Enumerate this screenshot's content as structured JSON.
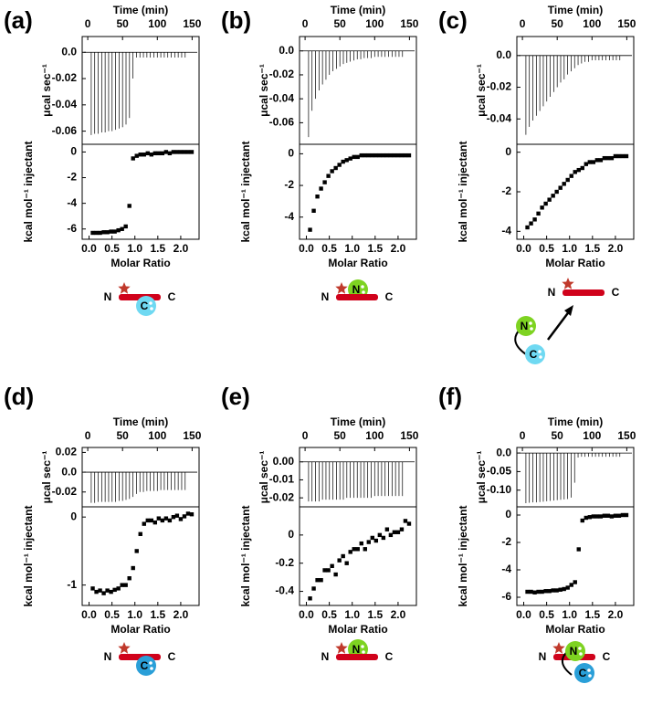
{
  "panels": [
    {
      "label": "(a)",
      "diagram_labels": [
        "N",
        "C",
        "C"
      ]
    },
    {
      "label": "(b)",
      "diagram_labels": [
        "N",
        "C",
        "N"
      ]
    },
    {
      "label": "(c)",
      "diagram_labels": [
        "N",
        "C",
        "N",
        "C"
      ]
    },
    {
      "label": "(d)",
      "diagram_labels": [
        "N",
        "C",
        "C"
      ]
    },
    {
      "label": "(e)",
      "diagram_labels": [
        "N",
        "C",
        "N"
      ]
    },
    {
      "label": "(f)",
      "diagram_labels": [
        "N",
        "C",
        "N",
        "C"
      ]
    }
  ],
  "chart_data": [
    {
      "type": "spike",
      "xlabel": "Time (min)",
      "ylabel": "μcal sec⁻¹",
      "color": "#000000",
      "xlim": [
        -8,
        160
      ],
      "xticks": [
        0,
        50,
        100,
        150
      ],
      "ylim": [
        -0.07,
        0.012
      ],
      "yticks": [
        {
          "value": 0,
          "label": "0.0"
        },
        -0.02,
        -0.04,
        -0.06
      ],
      "x": [
        5,
        10,
        15,
        20,
        25,
        30,
        35,
        40,
        45,
        50,
        55,
        60,
        65,
        70,
        75,
        80,
        85,
        90,
        95,
        100,
        105,
        110,
        115,
        120,
        125,
        130,
        135,
        140
      ],
      "values": [
        -0.063,
        -0.062,
        -0.062,
        -0.061,
        -0.061,
        -0.06,
        -0.06,
        -0.059,
        -0.058,
        -0.057,
        -0.055,
        -0.05,
        -0.02,
        -0.004,
        -0.004,
        -0.004,
        -0.004,
        -0.004,
        -0.004,
        -0.004,
        -0.004,
        -0.004,
        -0.004,
        -0.004,
        -0.004,
        -0.004,
        -0.004,
        -0.004
      ]
    },
    {
      "type": "scatter",
      "xlabel": "Molar Ratio",
      "ylabel": "kcal mol⁻¹ injectant",
      "color": "#000000",
      "xlim": [
        -0.15,
        2.4
      ],
      "xticks": [
        {
          "value": 0,
          "label": "0.0"
        },
        {
          "value": 0.5,
          "label": "0.5"
        },
        {
          "value": 1,
          "label": "1.0"
        },
        {
          "value": 1.5,
          "label": "1.5"
        },
        {
          "value": 2,
          "label": "2.0"
        }
      ],
      "ylim": [
        -6.8,
        0.6
      ],
      "yticks": [
        0,
        -2,
        -4,
        -6
      ],
      "x": [
        0.08,
        0.16,
        0.24,
        0.32,
        0.4,
        0.48,
        0.56,
        0.64,
        0.72,
        0.8,
        0.88,
        0.96,
        1.04,
        1.12,
        1.2,
        1.28,
        1.36,
        1.44,
        1.52,
        1.6,
        1.68,
        1.76,
        1.84,
        1.92,
        2,
        2.08,
        2.16,
        2.24
      ],
      "values": [
        -6.3,
        -6.3,
        -6.3,
        -6.25,
        -6.25,
        -6.2,
        -6.2,
        -6.1,
        -6,
        -5.8,
        -4.2,
        -0.5,
        -0.3,
        -0.2,
        -0.2,
        -0.1,
        -0.2,
        -0.1,
        -0.1,
        -0.1,
        0,
        -0.1,
        0,
        0,
        0,
        0,
        0,
        0
      ]
    },
    {
      "type": "spike",
      "xlabel": "Time (min)",
      "ylabel": "μcal sec⁻¹",
      "color": "#000000",
      "xlim": [
        -8,
        160
      ],
      "xticks": [
        0,
        50,
        100,
        150
      ],
      "ylim": [
        -0.078,
        0.012
      ],
      "yticks": [
        {
          "value": 0,
          "label": "0.0"
        },
        -0.02,
        -0.04,
        -0.06
      ],
      "x": [
        5,
        10,
        15,
        20,
        25,
        30,
        35,
        40,
        45,
        50,
        55,
        60,
        65,
        70,
        75,
        80,
        85,
        90,
        95,
        100,
        105,
        110,
        115,
        120,
        125,
        130,
        135,
        140
      ],
      "values": [
        -0.072,
        -0.05,
        -0.04,
        -0.033,
        -0.028,
        -0.024,
        -0.02,
        -0.017,
        -0.015,
        -0.013,
        -0.011,
        -0.01,
        -0.009,
        -0.008,
        -0.007,
        -0.007,
        -0.006,
        -0.006,
        -0.006,
        -0.005,
        -0.005,
        -0.005,
        -0.005,
        -0.005,
        -0.005,
        -0.005,
        -0.005,
        -0.005
      ]
    },
    {
      "type": "scatter",
      "xlabel": "Molar Ratio",
      "ylabel": "kcal mol⁻¹ injectant",
      "color": "#000000",
      "xlim": [
        -0.15,
        2.4
      ],
      "xticks": [
        {
          "value": 0,
          "label": "0.0"
        },
        {
          "value": 0.5,
          "label": "0.5"
        },
        {
          "value": 1,
          "label": "1.0"
        },
        {
          "value": 1.5,
          "label": "1.5"
        },
        {
          "value": 2,
          "label": "2.0"
        }
      ],
      "ylim": [
        -5.4,
        0.6
      ],
      "yticks": [
        0,
        -2,
        -4
      ],
      "x": [
        0.08,
        0.16,
        0.24,
        0.32,
        0.4,
        0.48,
        0.56,
        0.64,
        0.72,
        0.8,
        0.88,
        0.96,
        1.04,
        1.12,
        1.2,
        1.28,
        1.36,
        1.44,
        1.52,
        1.6,
        1.68,
        1.76,
        1.84,
        1.92,
        2,
        2.08,
        2.16,
        2.24
      ],
      "values": [
        -4.8,
        -3.6,
        -2.7,
        -2.2,
        -1.8,
        -1.4,
        -1.1,
        -0.9,
        -0.7,
        -0.5,
        -0.4,
        -0.3,
        -0.2,
        -0.2,
        -0.1,
        -0.1,
        -0.1,
        -0.1,
        -0.1,
        -0.1,
        -0.1,
        -0.1,
        -0.1,
        -0.1,
        -0.1,
        -0.1,
        -0.1,
        -0.1
      ]
    },
    {
      "type": "spike",
      "xlabel": "Time (min)",
      "ylabel": "μcal sec⁻¹",
      "color": "#000000",
      "xlim": [
        -8,
        160
      ],
      "xticks": [
        0,
        50,
        100,
        150
      ],
      "ylim": [
        -0.056,
        0.012
      ],
      "yticks": [
        {
          "value": 0,
          "label": "0.0"
        },
        -0.02,
        -0.04
      ],
      "x": [
        5,
        10,
        15,
        20,
        25,
        30,
        35,
        40,
        45,
        50,
        55,
        60,
        65,
        70,
        75,
        80,
        85,
        90,
        95,
        100,
        105,
        110,
        115,
        120,
        125,
        130,
        135,
        140
      ],
      "values": [
        -0.05,
        -0.045,
        -0.041,
        -0.038,
        -0.035,
        -0.032,
        -0.029,
        -0.026,
        -0.023,
        -0.02,
        -0.017,
        -0.015,
        -0.012,
        -0.01,
        -0.008,
        -0.006,
        -0.005,
        -0.004,
        -0.004,
        -0.003,
        -0.003,
        -0.003,
        -0.003,
        -0.003,
        -0.003,
        -0.003,
        -0.003,
        -0.003
      ]
    },
    {
      "type": "scatter",
      "xlabel": "Molar Ratio",
      "ylabel": "kcal mol⁻¹ injectant",
      "color": "#000000",
      "xlim": [
        -0.15,
        2.4
      ],
      "xticks": [
        {
          "value": 0,
          "label": "0.0"
        },
        {
          "value": 0.5,
          "label": "0.5"
        },
        {
          "value": 1,
          "label": "1.0"
        },
        {
          "value": 1.5,
          "label": "1.5"
        },
        {
          "value": 2,
          "label": "2.0"
        }
      ],
      "ylim": [
        -4.4,
        0.4
      ],
      "yticks": [
        0,
        -2,
        -4
      ],
      "x": [
        0.08,
        0.16,
        0.24,
        0.32,
        0.4,
        0.48,
        0.56,
        0.64,
        0.72,
        0.8,
        0.88,
        0.96,
        1.04,
        1.12,
        1.2,
        1.28,
        1.36,
        1.44,
        1.52,
        1.6,
        1.68,
        1.76,
        1.84,
        1.92,
        2,
        2.08,
        2.16,
        2.24
      ],
      "values": [
        -3.8,
        -3.6,
        -3.4,
        -3.1,
        -2.8,
        -2.6,
        -2.4,
        -2.2,
        -2,
        -1.8,
        -1.6,
        -1.4,
        -1.2,
        -1,
        -0.9,
        -0.8,
        -0.6,
        -0.5,
        -0.5,
        -0.4,
        -0.4,
        -0.3,
        -0.3,
        -0.3,
        -0.2,
        -0.2,
        -0.2,
        -0.2
      ]
    },
    {
      "type": "spike",
      "xlabel": "Time (min)",
      "ylabel": "μcal sec⁻¹",
      "color": "#000000",
      "xlim": [
        -8,
        160
      ],
      "xticks": [
        0,
        50,
        100,
        150
      ],
      "ylim": [
        -0.035,
        0.025
      ],
      "yticks": [
        0.02,
        {
          "value": 0,
          "label": "0.0"
        },
        -0.02
      ],
      "x": [
        5,
        10,
        15,
        20,
        25,
        30,
        35,
        40,
        45,
        50,
        55,
        60,
        65,
        70,
        75,
        80,
        85,
        90,
        95,
        100,
        105,
        110,
        115,
        120,
        125,
        130,
        135,
        140
      ],
      "values": [
        -0.031,
        -0.031,
        -0.03,
        -0.03,
        -0.03,
        -0.03,
        -0.03,
        -0.03,
        -0.029,
        -0.029,
        -0.028,
        -0.027,
        -0.025,
        -0.022,
        -0.02,
        -0.02,
        -0.019,
        -0.019,
        -0.019,
        -0.019,
        -0.018,
        -0.018,
        -0.018,
        -0.018,
        -0.018,
        -0.018,
        -0.018,
        -0.018
      ]
    },
    {
      "type": "scatter",
      "xlabel": "Molar Ratio",
      "ylabel": "kcal mol⁻¹ injectant",
      "color": "#000000",
      "xlim": [
        -0.15,
        2.4
      ],
      "xticks": [
        {
          "value": 0,
          "label": "0.0"
        },
        {
          "value": 0.5,
          "label": "0.5"
        },
        {
          "value": 1,
          "label": "1.0"
        },
        {
          "value": 1.5,
          "label": "1.5"
        },
        {
          "value": 2,
          "label": "2.0"
        }
      ],
      "ylim": [
        -1.3,
        0.15
      ],
      "yticks": [
        0,
        -1
      ],
      "x": [
        0.08,
        0.16,
        0.24,
        0.32,
        0.4,
        0.48,
        0.56,
        0.64,
        0.72,
        0.8,
        0.88,
        0.96,
        1.04,
        1.12,
        1.2,
        1.28,
        1.36,
        1.44,
        1.52,
        1.6,
        1.68,
        1.76,
        1.84,
        1.92,
        2,
        2.08,
        2.16,
        2.24
      ],
      "values": [
        -1.05,
        -1.1,
        -1.08,
        -1.12,
        -1.08,
        -1.1,
        -1.07,
        -1.05,
        -1,
        -1,
        -0.9,
        -0.75,
        -0.5,
        -0.25,
        -0.1,
        -0.05,
        -0.05,
        -0.08,
        -0.02,
        -0.05,
        -0.02,
        -0.05,
        0,
        0.02,
        -0.03,
        0.01,
        0.05,
        0.04
      ]
    },
    {
      "type": "spike",
      "xlabel": "Time (min)",
      "ylabel": "μcal sec⁻¹",
      "color": "#000000",
      "xlim": [
        -8,
        160
      ],
      "xticks": [
        0,
        50,
        100,
        150
      ],
      "ylim": [
        -0.025,
        0.008
      ],
      "yticks": [
        {
          "value": 0,
          "label": "0.00"
        },
        -0.01,
        -0.02
      ],
      "x": [
        5,
        10,
        15,
        20,
        25,
        30,
        35,
        40,
        45,
        50,
        55,
        60,
        65,
        70,
        75,
        80,
        85,
        90,
        95,
        100,
        105,
        110,
        115,
        120,
        125,
        130,
        135,
        140
      ],
      "values": [
        -0.022,
        -0.022,
        -0.022,
        -0.022,
        -0.021,
        -0.021,
        -0.021,
        -0.021,
        -0.021,
        -0.021,
        -0.021,
        -0.02,
        -0.02,
        -0.02,
        -0.02,
        -0.02,
        -0.02,
        -0.02,
        -0.02,
        -0.019,
        -0.019,
        -0.019,
        -0.019,
        -0.019,
        -0.019,
        -0.019,
        -0.019,
        -0.019
      ]
    },
    {
      "type": "scatter",
      "xlabel": "Molar Ratio",
      "ylabel": "kcal mol⁻¹ injectant",
      "color": "#000000",
      "xlim": [
        -0.15,
        2.4
      ],
      "xticks": [
        {
          "value": 0,
          "label": "0.0"
        },
        {
          "value": 0.5,
          "label": "0.5"
        },
        {
          "value": 1,
          "label": "1.0"
        },
        {
          "value": 1.5,
          "label": "1.5"
        },
        {
          "value": 2,
          "label": "2.0"
        }
      ],
      "ylim": [
        -0.5,
        0.2
      ],
      "yticks": [
        0,
        -0.2,
        -0.4
      ],
      "x": [
        0.08,
        0.16,
        0.24,
        0.32,
        0.4,
        0.48,
        0.56,
        0.64,
        0.72,
        0.8,
        0.88,
        0.96,
        1.04,
        1.12,
        1.2,
        1.28,
        1.36,
        1.44,
        1.52,
        1.6,
        1.68,
        1.76,
        1.84,
        1.92,
        2,
        2.08,
        2.16,
        2.24
      ],
      "values": [
        -0.45,
        -0.38,
        -0.32,
        -0.32,
        -0.25,
        -0.25,
        -0.22,
        -0.28,
        -0.18,
        -0.15,
        -0.2,
        -0.12,
        -0.1,
        -0.1,
        -0.06,
        -0.1,
        -0.05,
        -0.02,
        -0.04,
        0,
        -0.02,
        0.04,
        0,
        0.02,
        0.02,
        0.04,
        0.1,
        0.08
      ]
    },
    {
      "type": "spike",
      "xlabel": "Time (min)",
      "ylabel": "μcal sec⁻¹",
      "color": "#000000",
      "xlim": [
        -8,
        160
      ],
      "xticks": [
        0,
        50,
        100,
        150
      ],
      "ylim": [
        -0.145,
        0.015
      ],
      "yticks": [
        {
          "value": 0,
          "label": "0.0"
        },
        -0.05,
        {
          "value": -0.1,
          "label": "-0.10"
        }
      ],
      "x": [
        5,
        10,
        15,
        20,
        25,
        30,
        35,
        40,
        45,
        50,
        55,
        60,
        65,
        70,
        75,
        80,
        85,
        90,
        95,
        100,
        105,
        110,
        115,
        120,
        125,
        130,
        135,
        140
      ],
      "values": [
        -0.135,
        -0.134,
        -0.133,
        -0.133,
        -0.132,
        -0.131,
        -0.13,
        -0.129,
        -0.128,
        -0.127,
        -0.126,
        -0.125,
        -0.124,
        -0.12,
        -0.08,
        -0.012,
        -0.01,
        -0.01,
        -0.01,
        -0.01,
        -0.01,
        -0.01,
        -0.01,
        -0.01,
        -0.01,
        -0.01,
        -0.01,
        -0.01
      ]
    },
    {
      "type": "scatter",
      "xlabel": "Molar Ratio",
      "ylabel": "kcal mol⁻¹ injectant",
      "color": "#000000",
      "xlim": [
        -0.15,
        2.4
      ],
      "xticks": [
        {
          "value": 0,
          "label": "0.0"
        },
        {
          "value": 0.5,
          "label": "0.5"
        },
        {
          "value": 1,
          "label": "1.0"
        },
        {
          "value": 1.5,
          "label": "1.5"
        },
        {
          "value": 2,
          "label": "2.0"
        }
      ],
      "ylim": [
        -6.6,
        0.6
      ],
      "yticks": [
        0,
        -2,
        -4,
        -6
      ],
      "x": [
        0.08,
        0.16,
        0.24,
        0.32,
        0.4,
        0.48,
        0.56,
        0.64,
        0.72,
        0.8,
        0.88,
        0.96,
        1.04,
        1.12,
        1.2,
        1.28,
        1.36,
        1.44,
        1.52,
        1.6,
        1.68,
        1.76,
        1.84,
        1.92,
        2,
        2.08,
        2.16,
        2.24
      ],
      "values": [
        -5.6,
        -5.6,
        -5.65,
        -5.6,
        -5.6,
        -5.55,
        -5.55,
        -5.5,
        -5.5,
        -5.45,
        -5.4,
        -5.3,
        -5.1,
        -4.9,
        -2.5,
        -0.4,
        -0.2,
        -0.15,
        -0.1,
        -0.1,
        -0.1,
        -0.05,
        -0.05,
        -0.1,
        -0.05,
        -0.05,
        0,
        0
      ]
    }
  ]
}
